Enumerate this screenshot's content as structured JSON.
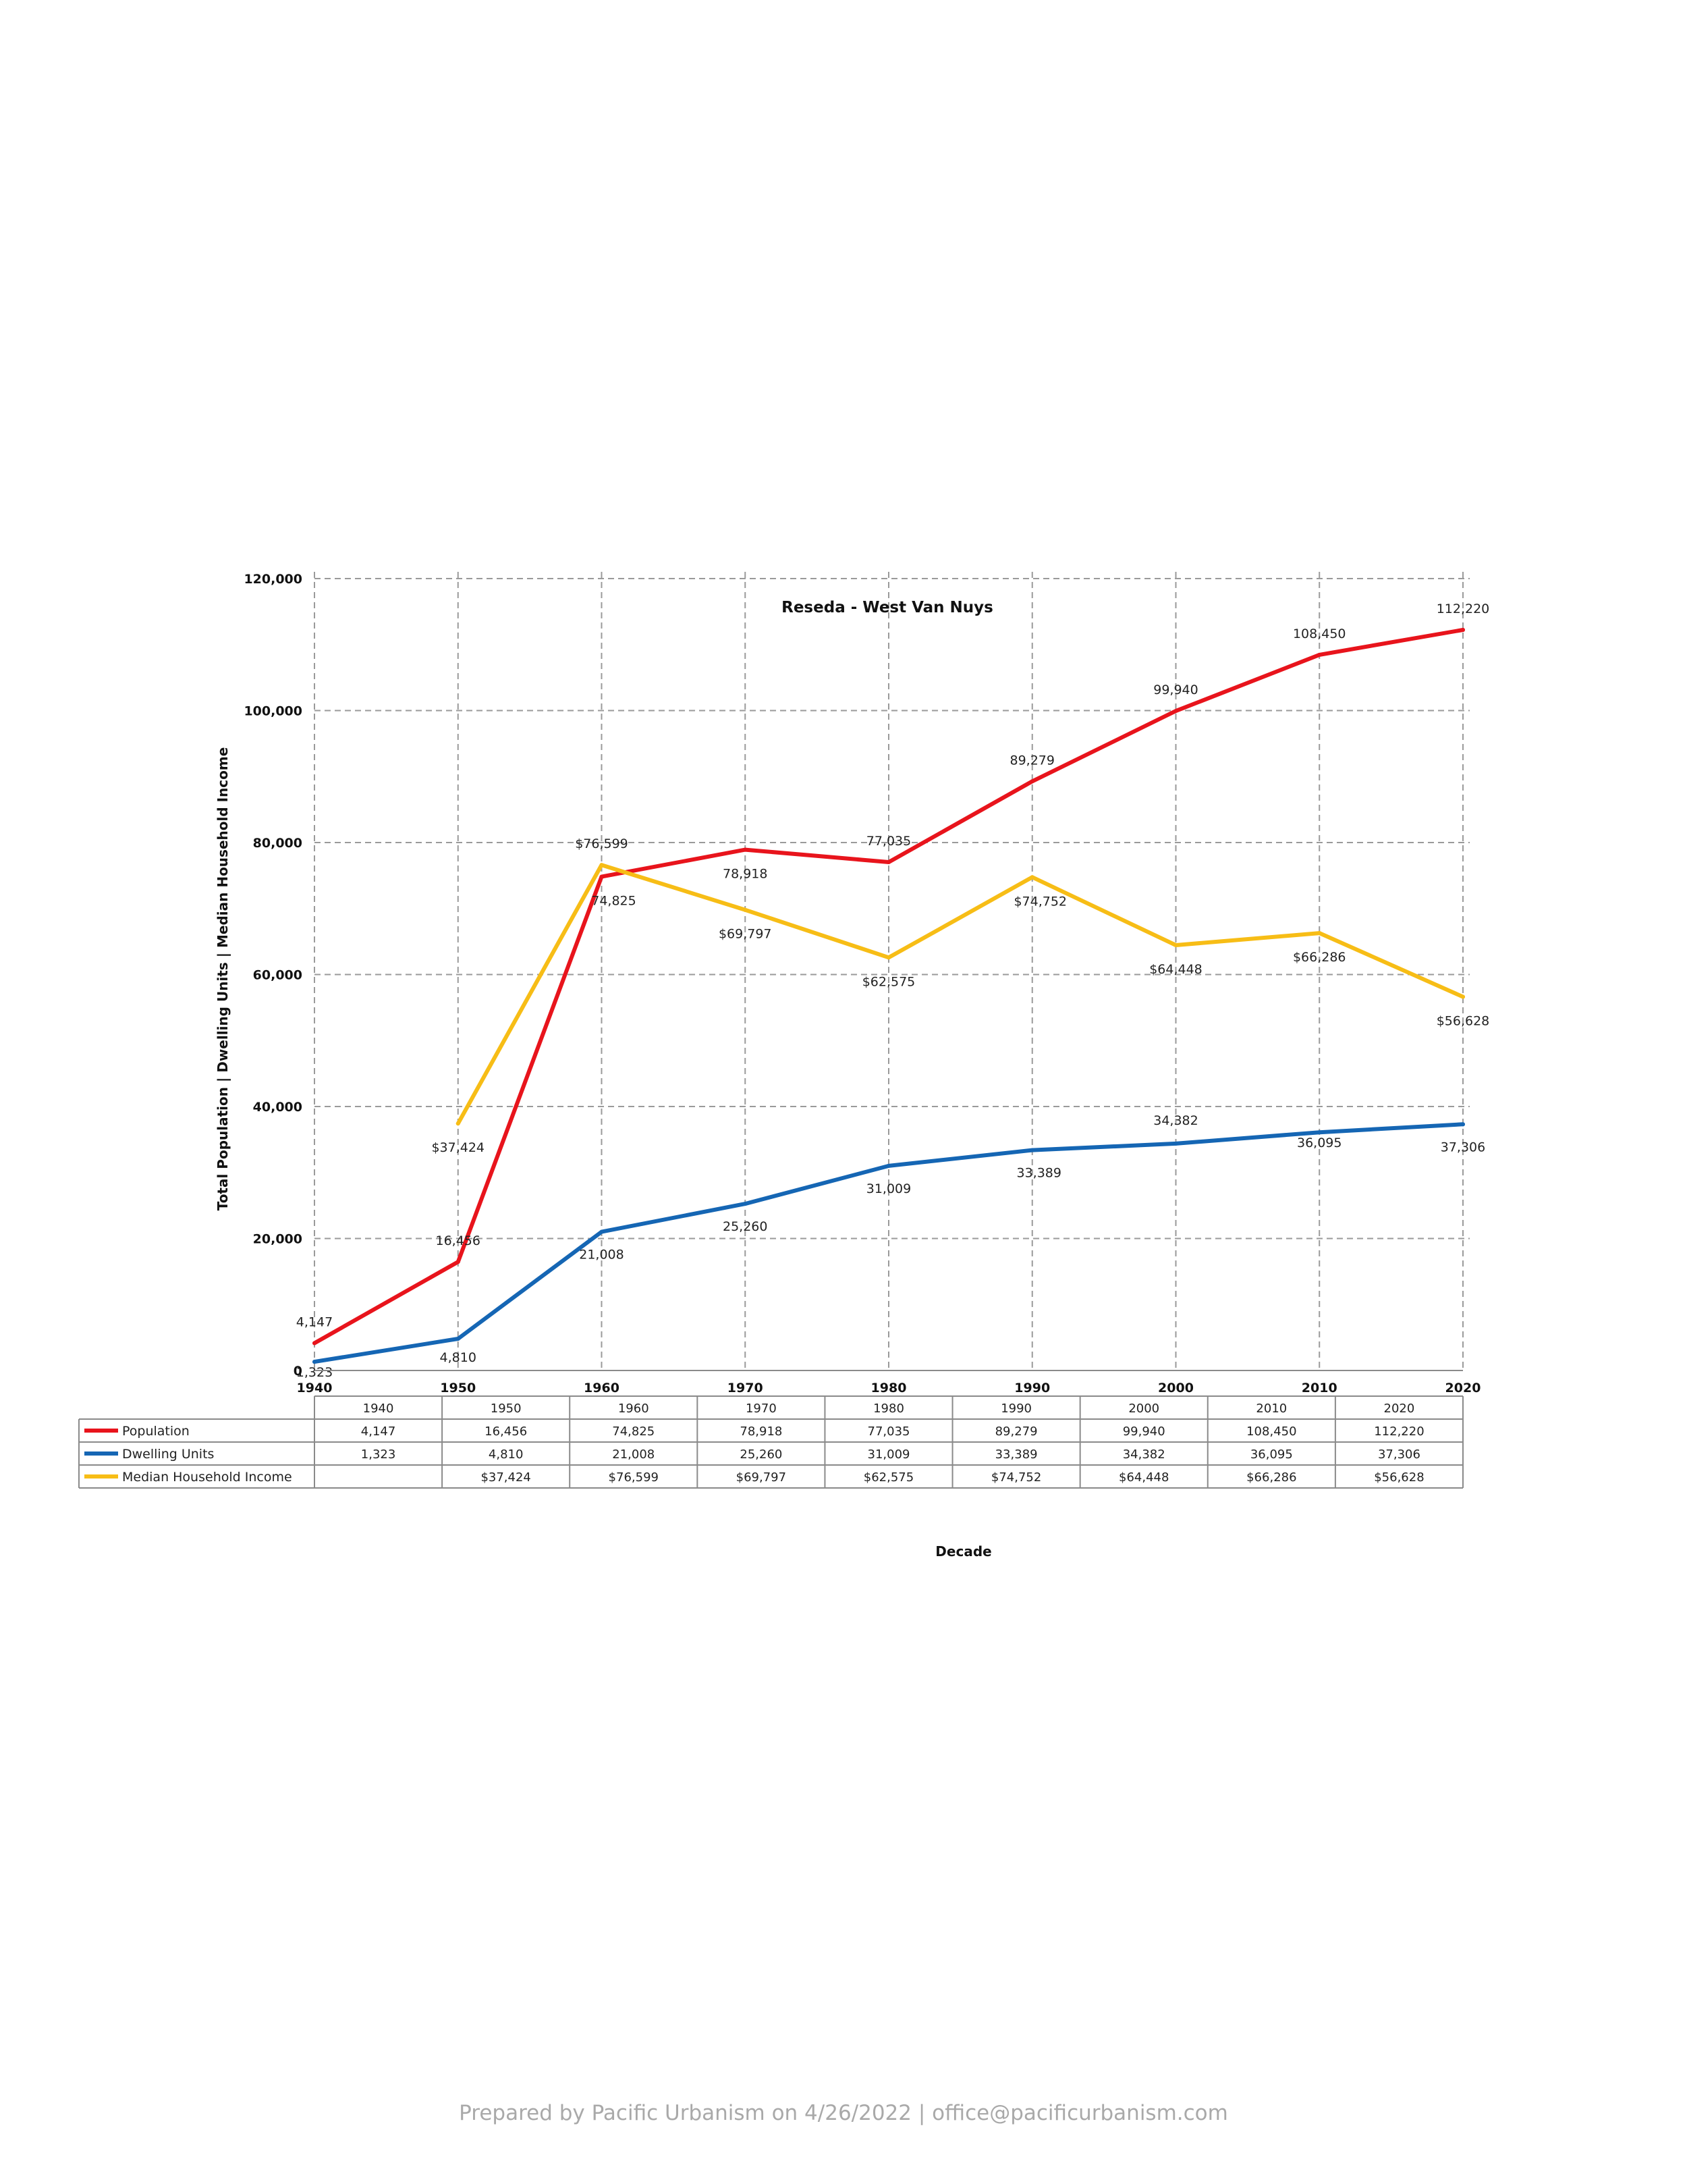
{
  "chart_data": {
    "type": "line",
    "title": "Reseda - West Van Nuys",
    "xlabel": "Decade",
    "ylabel": "Total Population | Dwelling Units | Median Household Income",
    "x": [
      "1940",
      "1950",
      "1960",
      "1970",
      "1980",
      "1990",
      "2000",
      "2010",
      "2020"
    ],
    "ylim": [
      0,
      120000
    ],
    "yticks": [
      "0",
      "20,000",
      "40,000",
      "60,000",
      "80,000",
      "100,000",
      "120,000"
    ],
    "ytick_values": [
      0,
      20000,
      40000,
      60000,
      80000,
      100000,
      120000
    ],
    "grid": true,
    "legend": "data-table-left",
    "series": [
      {
        "name": "Population",
        "color": "#e8141c",
        "values": [
          4147,
          16456,
          74825,
          78918,
          77035,
          89279,
          99940,
          108450,
          112220
        ],
        "labels": [
          "4,147",
          "16,456",
          "74,825",
          "78,918",
          "77,035",
          "89,279",
          "99,940",
          "108,450",
          "112,220"
        ]
      },
      {
        "name": "Dwelling Units",
        "color": "#1566b4",
        "values": [
          1323,
          4810,
          21008,
          25260,
          31009,
          33389,
          34382,
          36095,
          37306
        ],
        "labels": [
          "1,323",
          "4,810",
          "21,008",
          "25,260",
          "31,009",
          "33,389",
          "34,382",
          "36,095",
          "37,306"
        ]
      },
      {
        "name": "Median Household Income",
        "color": "#f7bd16",
        "values": [
          null,
          37424,
          76599,
          69797,
          62575,
          74752,
          64448,
          66286,
          56628
        ],
        "labels": [
          "",
          "$37,424",
          "$76,599",
          "$69,797",
          "$62,575",
          "$74,752",
          "$64,448",
          "$66,286",
          "$56,628"
        ]
      }
    ]
  },
  "footer": "Prepared by Pacific Urbanism on 4/26/2022 | office@pacificurbanism.com"
}
